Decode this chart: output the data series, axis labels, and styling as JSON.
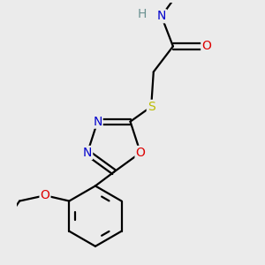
{
  "background_color": "#ebebeb",
  "atom_colors": {
    "C": "#000000",
    "N": "#0000cc",
    "O": "#dd0000",
    "S": "#bbbb00",
    "H": "#6a9090"
  },
  "bond_color": "#000000",
  "bond_width": 1.6,
  "font_size": 10,
  "figsize": [
    3.0,
    3.0
  ],
  "dpi": 100
}
